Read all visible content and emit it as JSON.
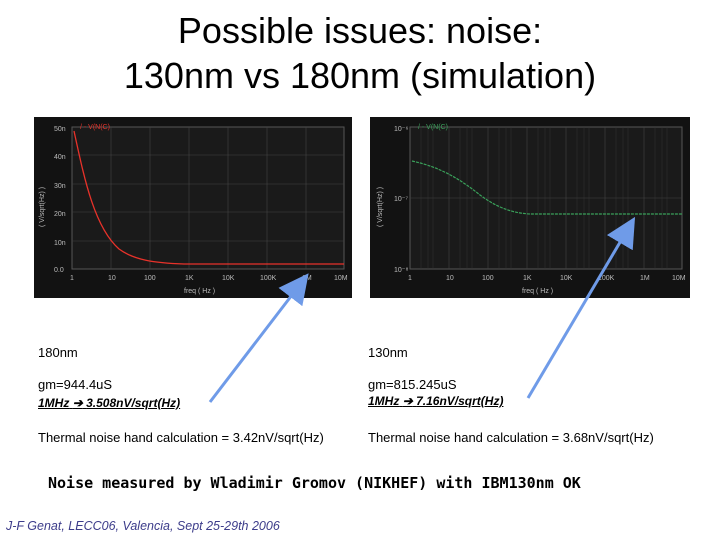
{
  "title": {
    "line1": "Possible issues:  noise:",
    "line2": "130nm vs 180nm   (simulation)"
  },
  "plot_180": {
    "legend": "/ - V(N(C)",
    "y_ticks": [
      "50n",
      "40n",
      "30n",
      "20n",
      "10n",
      "0.0"
    ],
    "x_ticks": [
      "1",
      "10",
      "100",
      "1K",
      "10K",
      "100K",
      "1M",
      "10M"
    ],
    "y_label": "( V/sqrt(Hz) )",
    "x_label": "freq ( Hz )",
    "line_color": "#e8322a"
  },
  "plot_130": {
    "legend": "/ - V(N(C)",
    "y_ticks": [
      "10⁻⁶",
      "10⁻⁷",
      "10⁻⁸"
    ],
    "x_ticks": [
      "1",
      "10",
      "100",
      "1K",
      "10K",
      "100K",
      "1M",
      "10M"
    ],
    "y_label": "( V/sqrt(Hz) )",
    "x_label": "freq ( Hz )",
    "line_color": "#3aa05a"
  },
  "left": {
    "node": "180nm",
    "gm": "gm=944.4uS",
    "freq": "1MHz",
    "arrow_glyph": "➔",
    "noise": "3.508nV/sqrt(Hz)",
    "thermal": "Thermal noise hand calculation = 3.42nV/sqrt(Hz)"
  },
  "right": {
    "node": "130nm",
    "gm": "gm=815.245uS",
    "freq": "1MHz",
    "arrow_glyph": "➔",
    "noise": "7.16nV/sqrt(Hz)",
    "thermal": "Thermal noise hand calculation = 3.68nV/sqrt(Hz)"
  },
  "note": "Noise measured by Wladimir Gromov (NIKHEF) with IBM130nm OK",
  "footer": "J-F Genat,  LECC06,   Valencia,  Sept 25-29th 2006"
}
